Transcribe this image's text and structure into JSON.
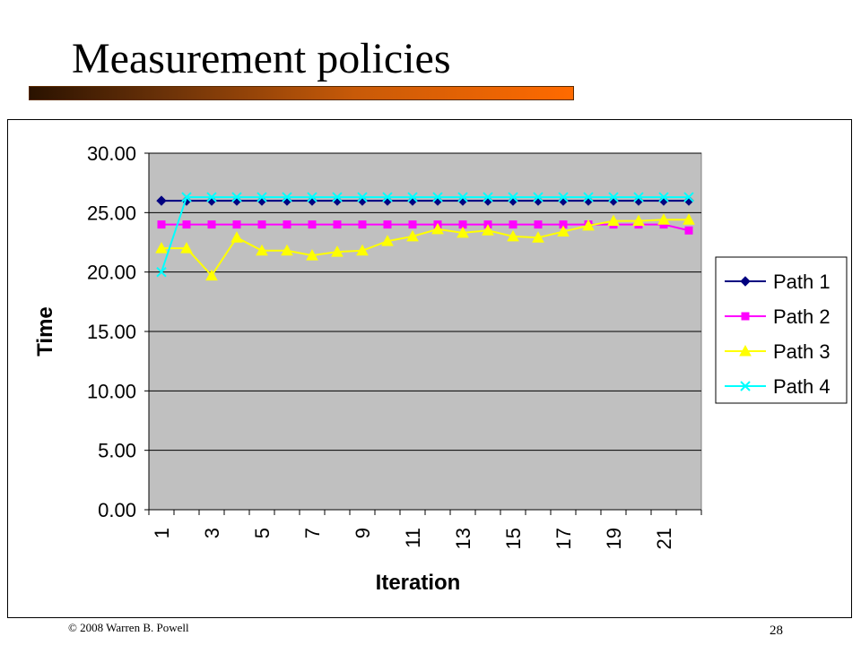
{
  "slide": {
    "title": "Measurement policies",
    "footer": "© 2008 Warren B. Powell",
    "page_number": "28"
  },
  "chart_data": {
    "type": "line",
    "title": "",
    "xlabel": "Iteration",
    "ylabel": "Time",
    "ylim": [
      0,
      30
    ],
    "yticks": [
      "0.00",
      "5.00",
      "10.00",
      "15.00",
      "20.00",
      "25.00",
      "30.00"
    ],
    "x": [
      1,
      2,
      3,
      4,
      5,
      6,
      7,
      8,
      9,
      10,
      11,
      12,
      13,
      14,
      15,
      16,
      17,
      18,
      19,
      20,
      21,
      22
    ],
    "xtick_labels": [
      "1",
      "3",
      "5",
      "7",
      "9",
      "11",
      "13",
      "15",
      "17",
      "19",
      "21"
    ],
    "grid": "horizontal",
    "plot_background": "#c0c0c0",
    "legend_position": "right",
    "series": [
      {
        "name": "Path 1",
        "color": "#000080",
        "marker": "diamond",
        "values": [
          26.0,
          26.0,
          26.0,
          26.0,
          26.0,
          26.0,
          26.0,
          26.0,
          26.0,
          26.0,
          26.0,
          26.0,
          26.0,
          26.0,
          26.0,
          26.0,
          26.0,
          26.0,
          26.0,
          26.0,
          26.0,
          26.0
        ]
      },
      {
        "name": "Path 2",
        "color": "#ff00ff",
        "marker": "square",
        "values": [
          24.0,
          24.0,
          24.0,
          24.0,
          24.0,
          24.0,
          24.0,
          24.0,
          24.0,
          24.0,
          24.0,
          24.0,
          24.0,
          24.0,
          24.0,
          24.0,
          24.0,
          24.0,
          24.0,
          24.0,
          24.0,
          23.5
        ]
      },
      {
        "name": "Path 3",
        "color": "#ffff00",
        "marker": "triangle",
        "values": [
          22.0,
          22.0,
          19.7,
          22.9,
          21.8,
          21.8,
          21.4,
          21.7,
          21.8,
          22.6,
          23.0,
          23.6,
          23.3,
          23.5,
          23.0,
          22.9,
          23.4,
          23.9,
          24.3,
          24.3,
          24.4,
          24.4
        ]
      },
      {
        "name": "Path 4",
        "color": "#00ffff",
        "marker": "x",
        "values": [
          20.0,
          26.3,
          26.3,
          26.3,
          26.3,
          26.3,
          26.3,
          26.3,
          26.3,
          26.3,
          26.3,
          26.3,
          26.3,
          26.3,
          26.3,
          26.3,
          26.3,
          26.3,
          26.3,
          26.3,
          26.3,
          26.3
        ]
      }
    ]
  }
}
